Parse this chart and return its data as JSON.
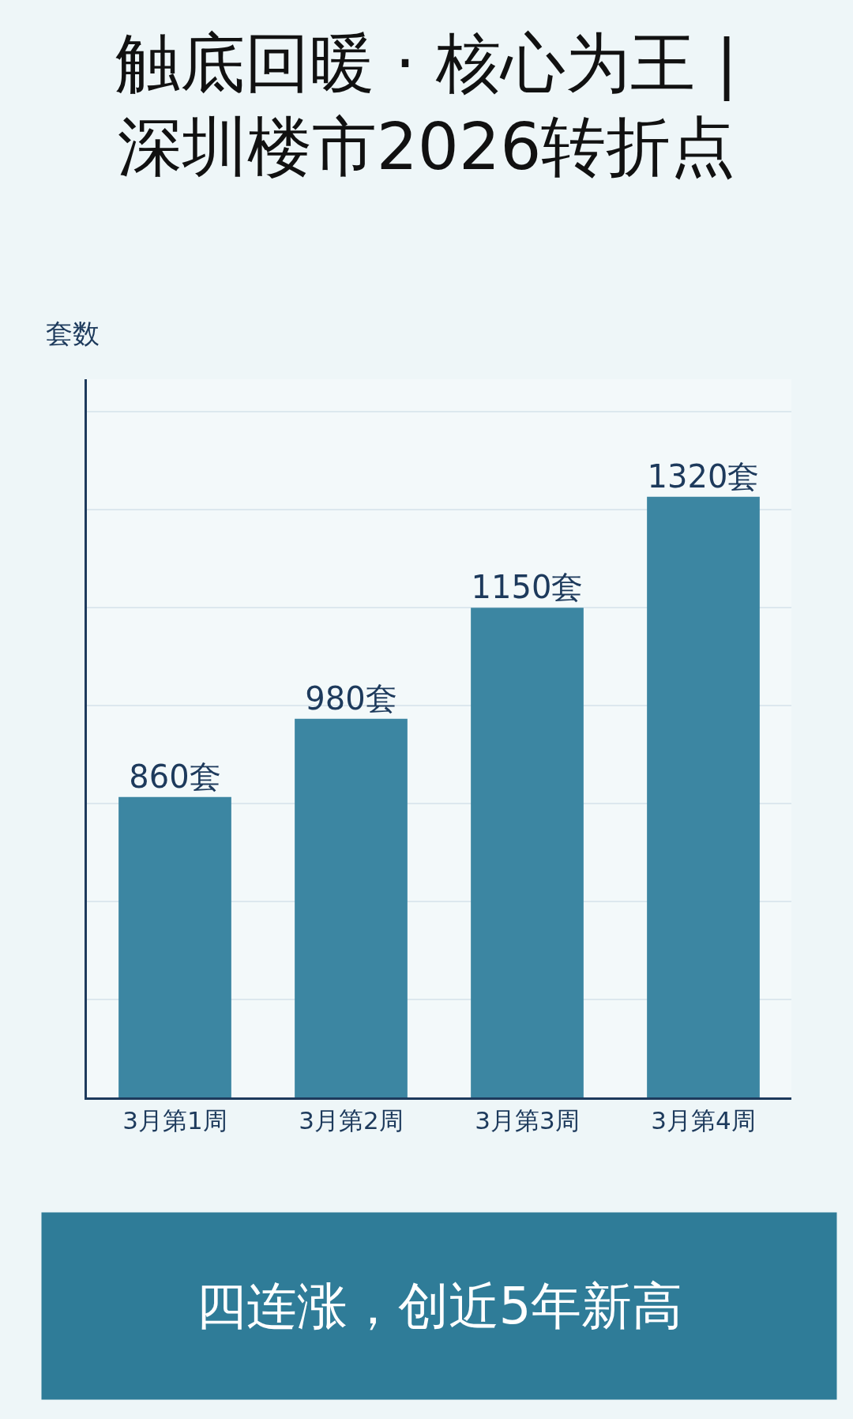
{
  "chart_data": {
    "type": "bar",
    "title": "触底回暖 · 核心为王 |\n深圳楼市2026转折点",
    "ylabel": "套数",
    "categories": [
      "3月第1周",
      "3月第2周",
      "3月第3周",
      "3月第4周"
    ],
    "values": [
      860,
      980,
      1150,
      1320
    ],
    "value_labels": [
      "860套",
      "980套",
      "1150套",
      "1320套"
    ],
    "color": "#3c86a2",
    "ylim": [
      400,
      1500
    ],
    "yticks": [
      {
        "value": 550,
        "label": null
      },
      {
        "value": 700,
        "label": null
      },
      {
        "value": 850,
        "label": null
      },
      {
        "value": 1000,
        "label": null
      },
      {
        "value": 1150,
        "label": null
      },
      {
        "value": 1300,
        "label": null
      },
      {
        "value": 1450,
        "label": null
      }
    ],
    "grid": "y",
    "tick_labels": "x",
    "annotations": [
      "四连涨，创近5年新高"
    ]
  }
}
